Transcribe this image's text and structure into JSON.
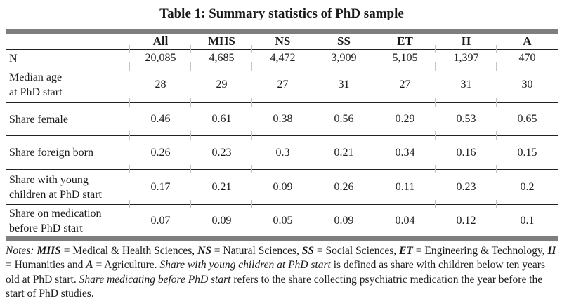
{
  "title": "Table 1: Summary statistics of PhD sample",
  "table": {
    "corner": "",
    "columns": [
      "All",
      "MHS",
      "NS",
      "SS",
      "ET",
      "H",
      "A"
    ],
    "rows": [
      {
        "label": "N",
        "values": [
          "20,085",
          "4,685",
          "4,472",
          "3,909",
          "5,105",
          "1,397",
          "470"
        ]
      },
      {
        "label": "Median age\nat PhD start",
        "values": [
          "28",
          "29",
          "27",
          "31",
          "27",
          "31",
          "30"
        ]
      },
      {
        "label": "Share female",
        "values": [
          "0.46",
          "0.61",
          "0.38",
          "0.56",
          "0.29",
          "0.53",
          "0.65"
        ]
      },
      {
        "label": "Share foreign born",
        "values": [
          "0.26",
          "0.23",
          "0.3",
          "0.21",
          "0.34",
          "0.16",
          "0.15"
        ]
      },
      {
        "label": "Share with young\nchildren at PhD start",
        "values": [
          "0.17",
          "0.21",
          "0.09",
          "0.26",
          "0.11",
          "0.23",
          "0.2"
        ]
      },
      {
        "label": "Share on medication\nbefore PhD start",
        "values": [
          "0.07",
          "0.09",
          "0.05",
          "0.09",
          "0.04",
          "0.12",
          "0.1"
        ]
      }
    ]
  },
  "notes": {
    "segments": [
      {
        "t": "Notes: ",
        "s": "i"
      },
      {
        "t": "MHS",
        "s": "bi"
      },
      {
        "t": " = Medical & Health Sciences, ",
        "s": ""
      },
      {
        "t": "NS",
        "s": "bi"
      },
      {
        "t": " = Natural Sciences, ",
        "s": ""
      },
      {
        "t": "SS",
        "s": "bi"
      },
      {
        "t": " = Social Sciences, ",
        "s": ""
      },
      {
        "t": "ET",
        "s": "bi"
      },
      {
        "t": " = Engineering & Technology, ",
        "s": ""
      },
      {
        "t": "H",
        "s": "bi"
      },
      {
        "t": " = Humanities and ",
        "s": ""
      },
      {
        "t": "A",
        "s": "bi"
      },
      {
        "t": " = Agriculture. ",
        "s": ""
      },
      {
        "t": "Share with young children at PhD start",
        "s": "i"
      },
      {
        "t": " is defined as share with children below ten years old at PhD start. ",
        "s": ""
      },
      {
        "t": "Share medicating before PhD start",
        "s": "i"
      },
      {
        "t": " refers to the share collecting psychiatric medication the year before the start of PhD studies.",
        "s": ""
      }
    ]
  },
  "colors": {
    "thick_bar": "#7e7e7e",
    "rule": "#222222",
    "tick": "#c4c4c4",
    "text": "#1a1a1a",
    "background": "#ffffff"
  }
}
